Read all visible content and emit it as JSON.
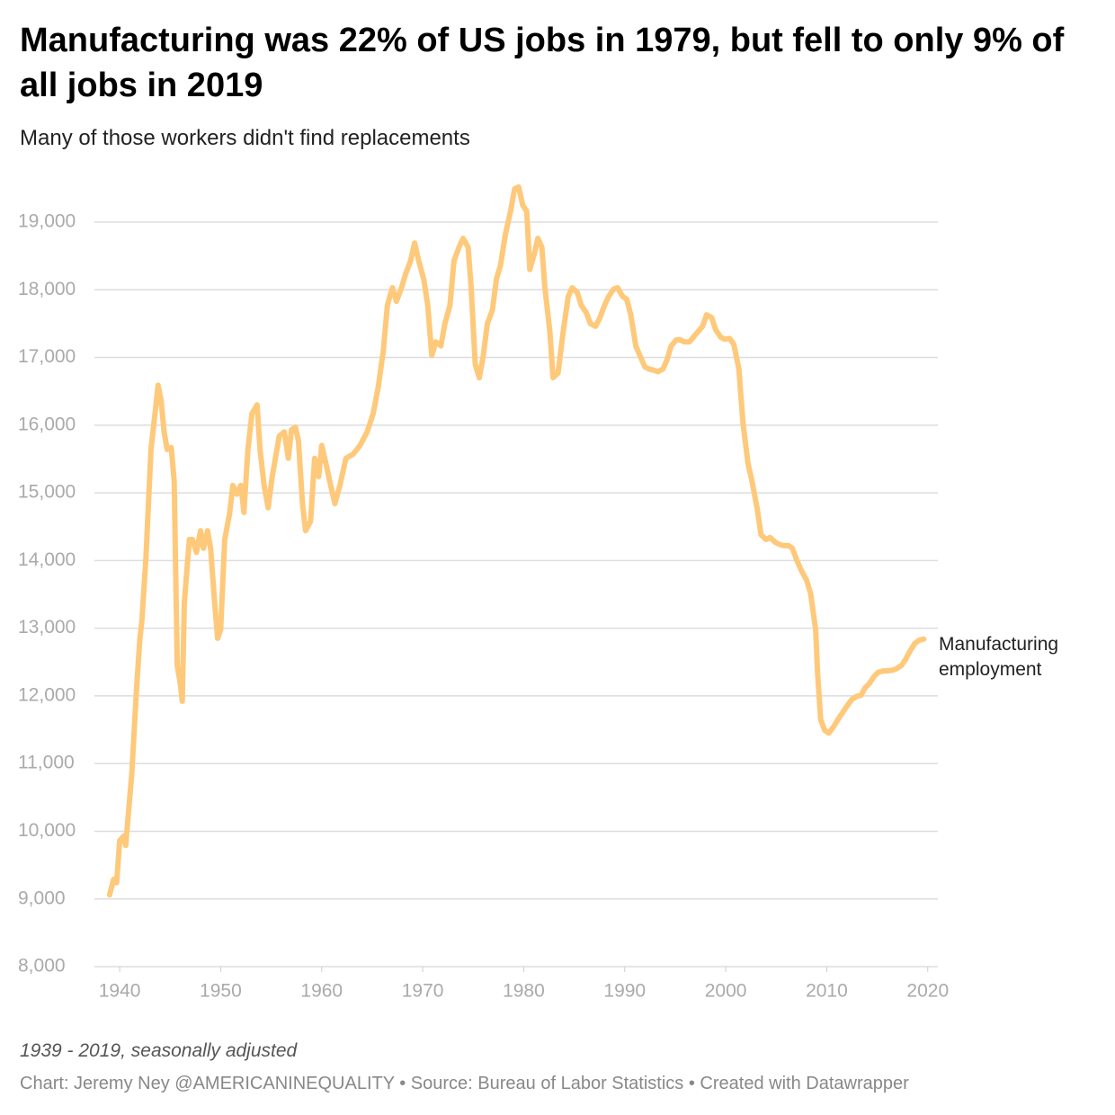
{
  "chart_data": {
    "type": "line",
    "title": "Manufacturing was 22% of US jobs in 1979, but fell to only 9% of all jobs in 2019",
    "subtitle": "Many of those workers didn't find replacements",
    "note": "1939 - 2019, seasonally adjusted",
    "footer": "Chart: Jeremy Ney @AMERICANINEQUALITY • Source: Bureau of Labor Statistics • Created with Datawrapper",
    "x": [
      1939.0,
      1939.4,
      1939.7,
      1940.0,
      1940.4,
      1940.6,
      1941.2,
      1941.7,
      1942.0,
      1942.2,
      1942.6,
      1943.1,
      1943.6,
      1943.8,
      1944.1,
      1944.4,
      1944.7,
      1945.1,
      1945.4,
      1945.7,
      1946.0,
      1946.2,
      1946.4,
      1946.9,
      1947.2,
      1947.6,
      1948.0,
      1948.3,
      1948.7,
      1949.0,
      1949.4,
      1949.7,
      1950.0,
      1950.4,
      1950.9,
      1951.2,
      1951.6,
      1952.0,
      1952.3,
      1952.7,
      1953.1,
      1953.6,
      1953.9,
      1954.3,
      1954.7,
      1955.1,
      1955.8,
      1956.3,
      1956.7,
      1957.0,
      1957.4,
      1957.7,
      1958.1,
      1958.4,
      1958.9,
      1959.3,
      1959.7,
      1960.0,
      1960.5,
      1960.8,
      1961.3,
      1961.8,
      1962.4,
      1963.1,
      1963.8,
      1964.5,
      1965.1,
      1965.6,
      1966.1,
      1966.5,
      1967.0,
      1967.4,
      1967.9,
      1968.3,
      1968.8,
      1969.2,
      1969.6,
      1970.1,
      1970.5,
      1970.9,
      1971.3,
      1971.8,
      1972.2,
      1972.7,
      1973.1,
      1973.6,
      1974.0,
      1974.5,
      1974.8,
      1975.2,
      1975.6,
      1976.0,
      1976.4,
      1976.9,
      1977.3,
      1977.7,
      1978.2,
      1978.7,
      1979.1,
      1979.5,
      1979.9,
      1980.3,
      1980.6,
      1981.1,
      1981.4,
      1981.8,
      1982.1,
      1982.6,
      1982.9,
      1983.4,
      1983.9,
      1984.4,
      1984.8,
      1985.3,
      1985.7,
      1986.2,
      1986.6,
      1987.1,
      1987.5,
      1988.0,
      1988.4,
      1988.9,
      1989.3,
      1989.8,
      1990.2,
      1990.6,
      1991.1,
      1991.5,
      1992.0,
      1992.4,
      1992.9,
      1993.3,
      1993.8,
      1994.2,
      1994.6,
      1995.1,
      1995.5,
      1995.9,
      1996.4,
      1996.8,
      1997.2,
      1997.7,
      1998.1,
      1998.6,
      1999.0,
      1999.5,
      1999.9,
      2000.4,
      2000.8,
      2001.3,
      2001.7,
      2002.2,
      2002.6,
      2003.1,
      2003.5,
      2004.0,
      2004.4,
      2004.9,
      2005.3,
      2005.7,
      2006.2,
      2006.6,
      2007.1,
      2007.5,
      2008.0,
      2008.4,
      2008.9,
      2009.1,
      2009.4,
      2009.8,
      2010.2,
      2010.7,
      2011.1,
      2011.6,
      2012.0,
      2012.5,
      2012.9,
      2013.4,
      2013.8,
      2014.2,
      2014.7,
      2015.1,
      2015.6,
      2016.0,
      2016.5,
      2016.9,
      2017.4,
      2017.8,
      2018.2,
      2018.7,
      2019.1,
      2019.6
    ],
    "series": [
      {
        "name": "Manufacturing employment",
        "color": "#fec97a",
        "values": [
          9060,
          9290,
          9240,
          9860,
          9930,
          9790,
          10860,
          12180,
          12850,
          13110,
          14040,
          15640,
          16300,
          16590,
          16370,
          15900,
          15640,
          15670,
          15180,
          12450,
          12180,
          11920,
          13380,
          14310,
          14310,
          14120,
          14440,
          14180,
          14440,
          14180,
          13380,
          12850,
          12980,
          14310,
          14710,
          15110,
          14980,
          15110,
          14710,
          15640,
          16170,
          16300,
          15640,
          15110,
          14780,
          15240,
          15840,
          15900,
          15510,
          15930,
          15970,
          15770,
          14840,
          14440,
          14580,
          15510,
          15240,
          15700,
          15380,
          15170,
          14840,
          15110,
          15510,
          15570,
          15700,
          15900,
          16170,
          16570,
          17100,
          17770,
          18030,
          17830,
          18030,
          18230,
          18430,
          18690,
          18430,
          18160,
          17770,
          17030,
          17230,
          17170,
          17500,
          17770,
          18430,
          18630,
          18760,
          18630,
          18030,
          16900,
          16700,
          17030,
          17500,
          17700,
          18160,
          18360,
          18830,
          19160,
          19490,
          19520,
          19250,
          19160,
          18300,
          18560,
          18760,
          18630,
          18030,
          17370,
          16700,
          16770,
          17370,
          17900,
          18030,
          17960,
          17770,
          17660,
          17500,
          17460,
          17570,
          17770,
          17900,
          18010,
          18030,
          17900,
          17860,
          17630,
          17170,
          17030,
          16860,
          16830,
          16810,
          16790,
          16830,
          16970,
          17170,
          17260,
          17260,
          17230,
          17230,
          17300,
          17370,
          17460,
          17630,
          17590,
          17410,
          17300,
          17270,
          17280,
          17190,
          16830,
          16040,
          15440,
          15170,
          14780,
          14380,
          14310,
          14340,
          14270,
          14240,
          14220,
          14220,
          14180,
          13980,
          13850,
          13710,
          13510,
          12980,
          12320,
          11650,
          11490,
          11450,
          11550,
          11650,
          11760,
          11850,
          11950,
          11990,
          12010,
          12120,
          12180,
          12290,
          12350,
          12370,
          12370,
          12380,
          12400,
          12450,
          12540,
          12650,
          12770,
          12820,
          12840
        ]
      }
    ],
    "xlim": [
      1937.5,
      2021
    ],
    "xticks": [
      1940,
      1950,
      1960,
      1970,
      1980,
      1990,
      2000,
      2010,
      2020
    ],
    "ylim": [
      8000,
      19000
    ],
    "yticks": [
      {
        "value": 8000,
        "label": "8,000"
      },
      {
        "value": 9000,
        "label": "9,000"
      },
      {
        "value": 10000,
        "label": "10,000"
      },
      {
        "value": 11000,
        "label": "11,000"
      },
      {
        "value": 12000,
        "label": "12,000"
      },
      {
        "value": 13000,
        "label": "13,000"
      },
      {
        "value": 14000,
        "label": "14,000"
      },
      {
        "value": 15000,
        "label": "15,000"
      },
      {
        "value": 16000,
        "label": "16,000"
      },
      {
        "value": 17000,
        "label": "17,000"
      },
      {
        "value": 18000,
        "label": "18,000"
      },
      {
        "value": 19000,
        "label": "19,000"
      }
    ],
    "grid": true
  }
}
